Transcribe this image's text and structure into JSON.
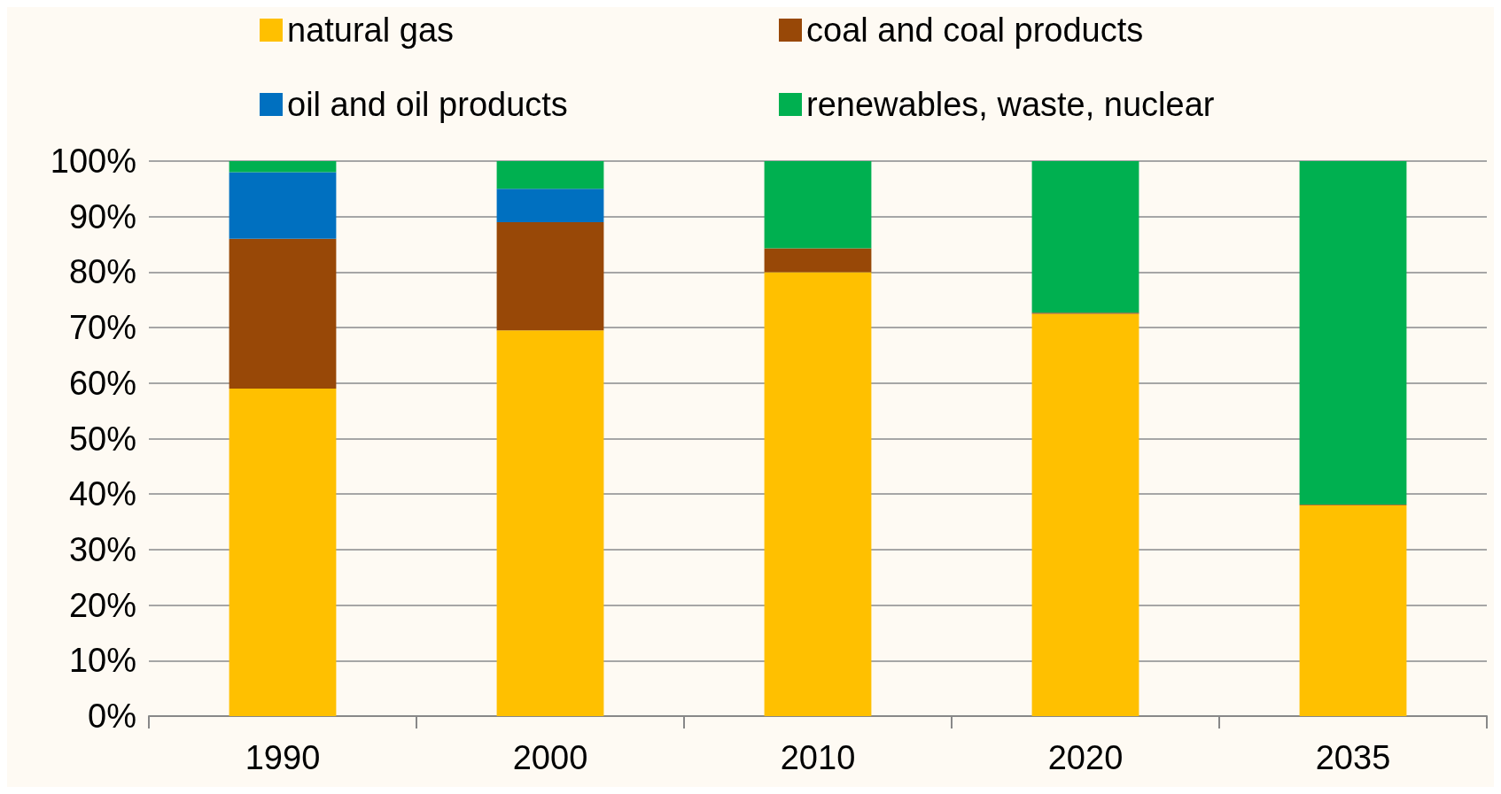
{
  "chart_data": {
    "type": "bar",
    "stacked": true,
    "categories": [
      "1990",
      "2000",
      "2010",
      "2020",
      "2035"
    ],
    "series": [
      {
        "name": "natural gas",
        "color": "#ffc000",
        "values": [
          59,
          69.5,
          80,
          72.5,
          38
        ]
      },
      {
        "name": "coal and coal products",
        "color": "#984807",
        "values": [
          27,
          19.5,
          4.3,
          0.2,
          0.1
        ]
      },
      {
        "name": "oil and oil products",
        "color": "#0070c0",
        "values": [
          12,
          6,
          0,
          0,
          0
        ]
      },
      {
        "name": "renewables, waste, nuclear",
        "color": "#00b050",
        "values": [
          2,
          5,
          15.7,
          27.3,
          61.9
        ]
      }
    ],
    "ylim": [
      0,
      100
    ],
    "yticks": [
      {
        "value": 0,
        "label": "0%"
      },
      {
        "value": 10,
        "label": "10%"
      },
      {
        "value": 20,
        "label": "20%"
      },
      {
        "value": 30,
        "label": "30%"
      },
      {
        "value": 40,
        "label": "40%"
      },
      {
        "value": 50,
        "label": "50%"
      },
      {
        "value": 60,
        "label": "60%"
      },
      {
        "value": 70,
        "label": "70%"
      },
      {
        "value": 80,
        "label": "80%"
      },
      {
        "value": 90,
        "label": "90%"
      },
      {
        "value": 100,
        "label": "100%"
      }
    ],
    "grid": "y",
    "legend": "top"
  }
}
